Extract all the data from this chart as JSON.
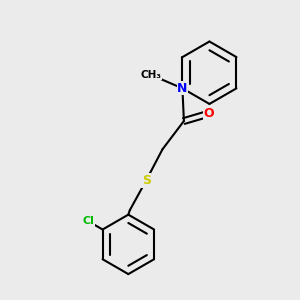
{
  "background_color": "#ebebeb",
  "bond_color": "#000000",
  "atom_colors": {
    "N": "#0000ff",
    "O": "#ff0000",
    "S": "#cccc00",
    "Cl": "#00bb00"
  },
  "bond_width": 1.5,
  "font_size": 9
}
